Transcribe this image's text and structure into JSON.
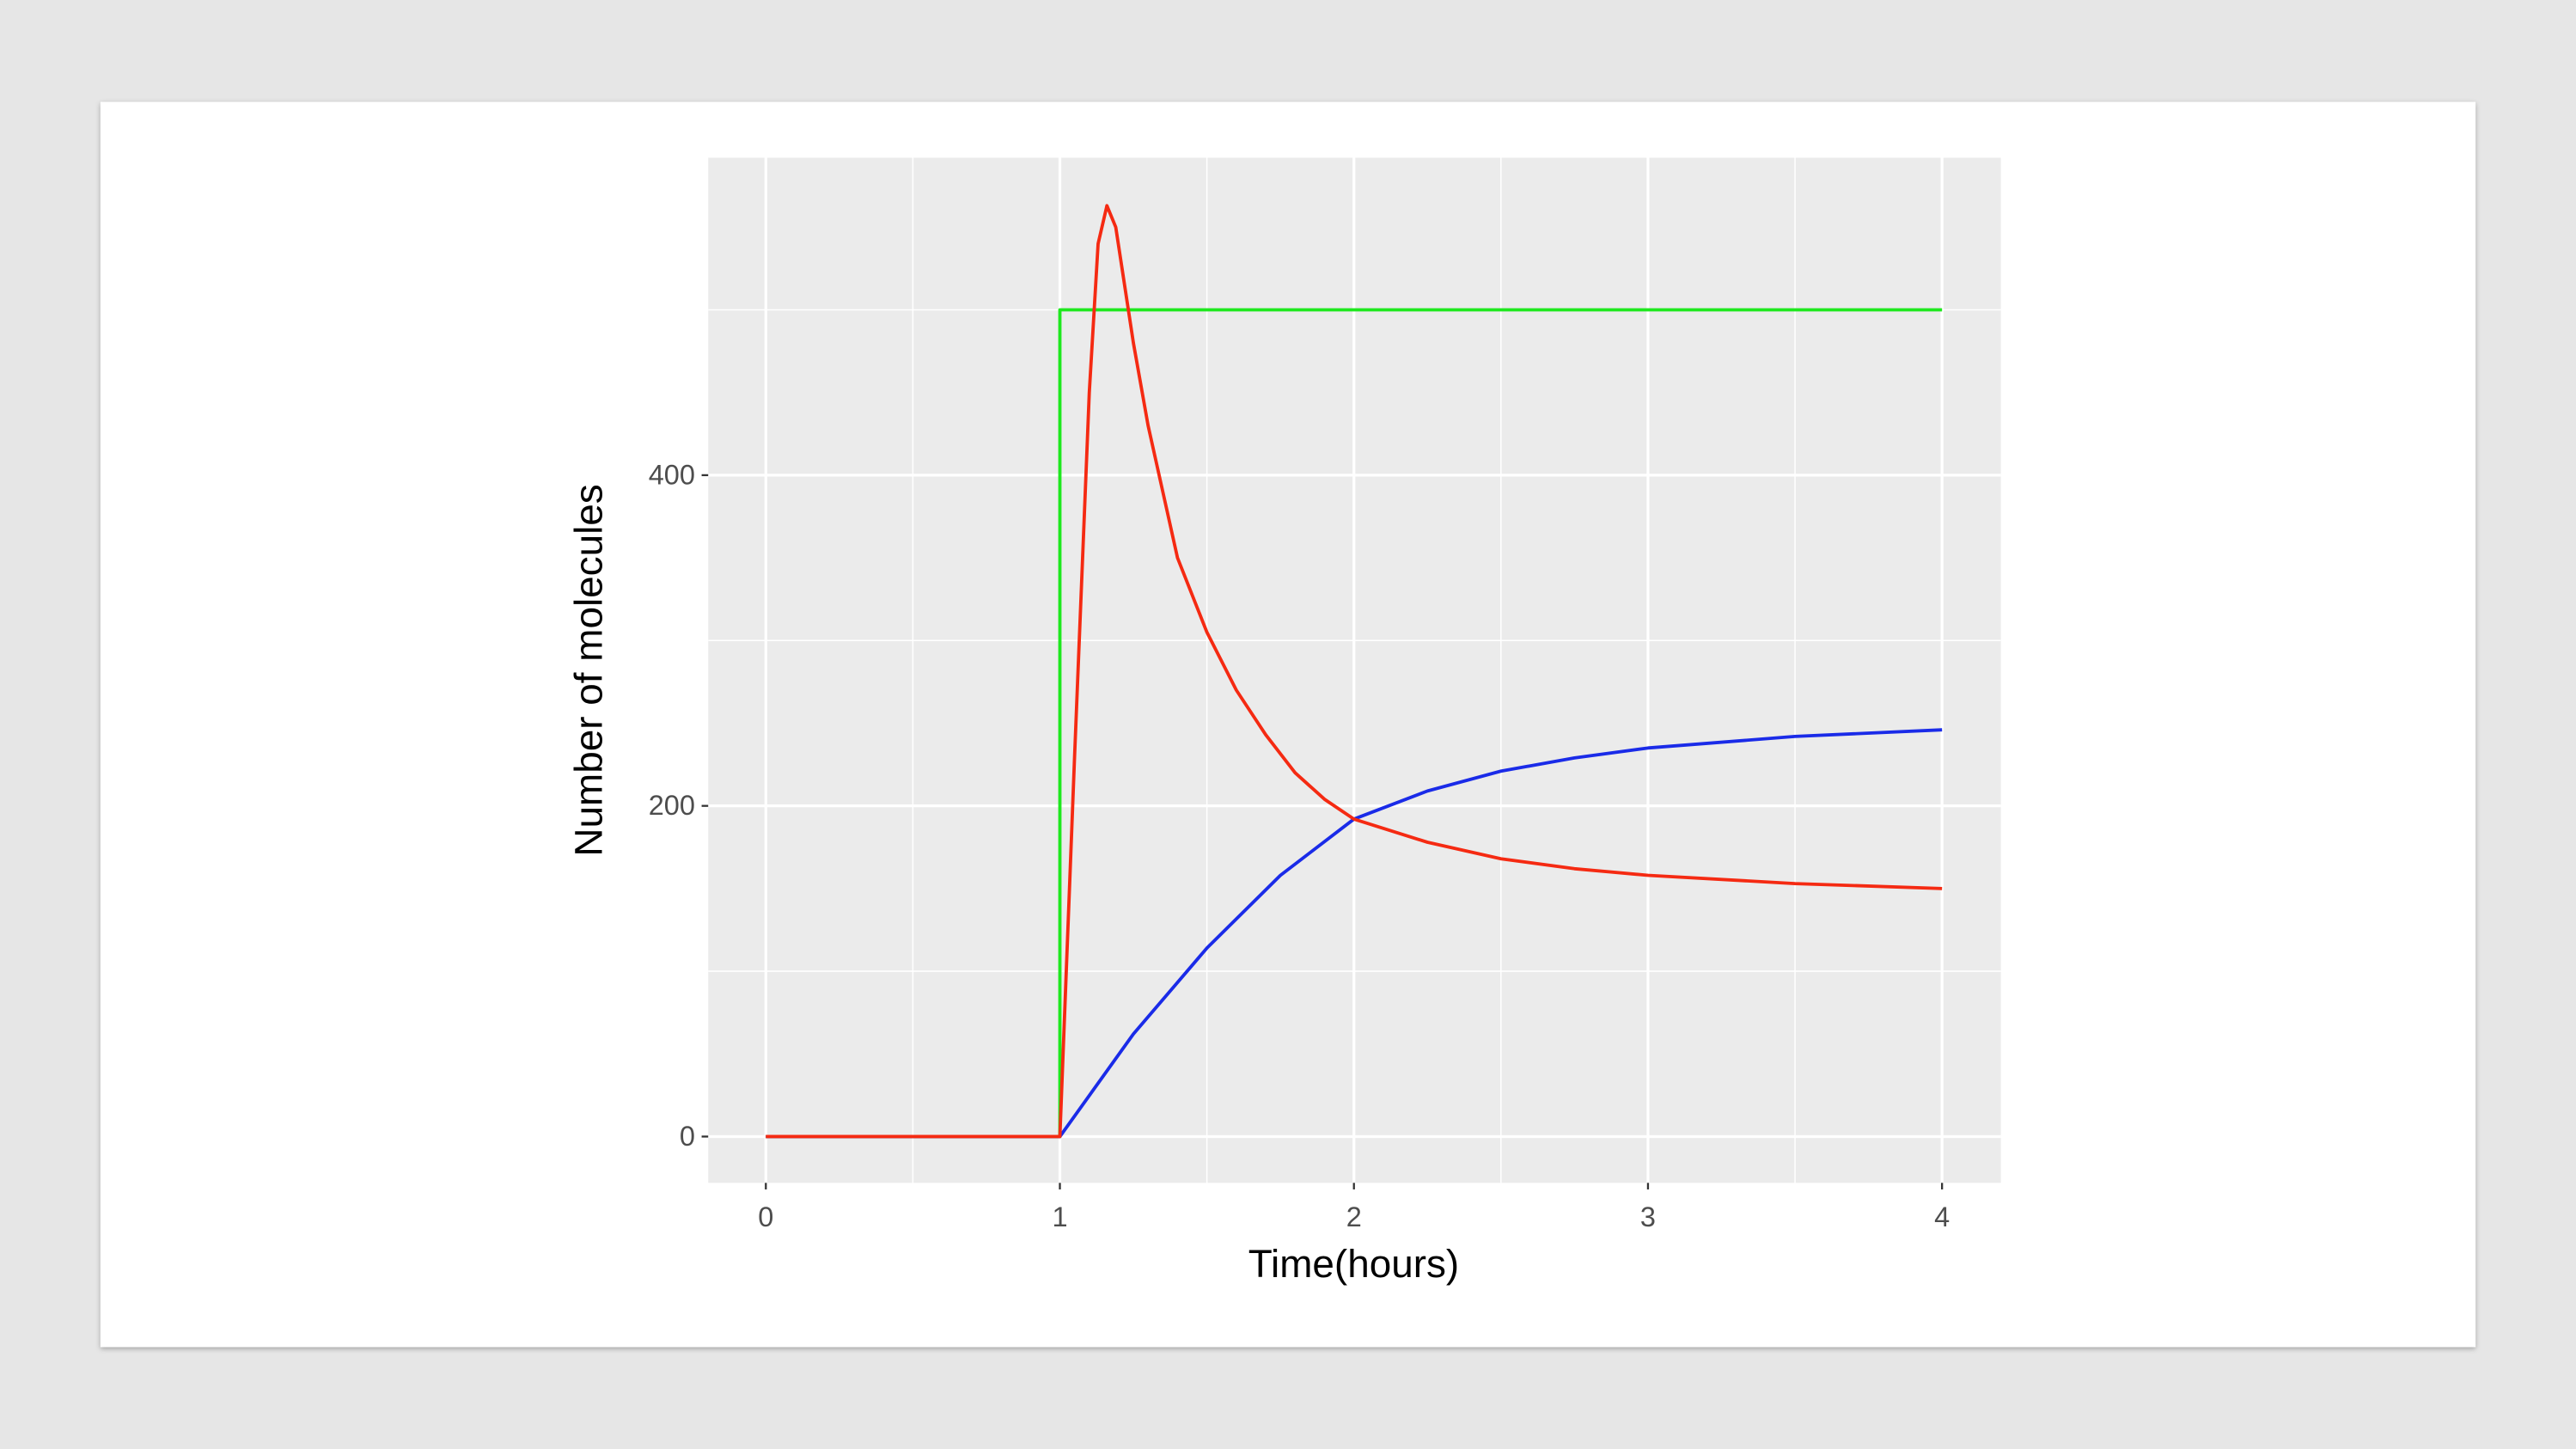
{
  "chart_data": {
    "type": "line",
    "xlabel": "Time(hours)",
    "ylabel": "Number of molecules",
    "xlim": [
      -0.196,
      4.2
    ],
    "ylim": [
      -28,
      592
    ],
    "xticks": [
      0,
      1,
      2,
      3,
      4
    ],
    "yticks": [
      0,
      200,
      400
    ],
    "grid": true,
    "series": [
      {
        "color": "#1ee81e",
        "x": [
          0,
          1,
          1,
          4
        ],
        "values": [
          0,
          0,
          500,
          500
        ]
      },
      {
        "color": "#1a2be8",
        "x": [
          0,
          1,
          1.25,
          1.5,
          1.75,
          2,
          2.25,
          2.5,
          2.75,
          3,
          3.5,
          4
        ],
        "values": [
          0,
          0,
          62,
          114,
          158,
          192,
          209,
          221,
          229,
          235,
          242,
          246
        ]
      },
      {
        "color": "#f52a12",
        "x": [
          0,
          1,
          1.05,
          1.1,
          1.13,
          1.16,
          1.19,
          1.22,
          1.25,
          1.3,
          1.35,
          1.4,
          1.5,
          1.6,
          1.7,
          1.8,
          1.9,
          2.0,
          2.25,
          2.5,
          2.75,
          3.0,
          3.5,
          4.0
        ],
        "values": [
          0,
          0,
          230,
          450,
          540,
          563,
          550,
          515,
          480,
          430,
          390,
          350,
          305,
          270,
          243,
          220,
          204,
          192,
          178,
          168,
          162,
          158,
          153,
          150
        ]
      }
    ]
  }
}
